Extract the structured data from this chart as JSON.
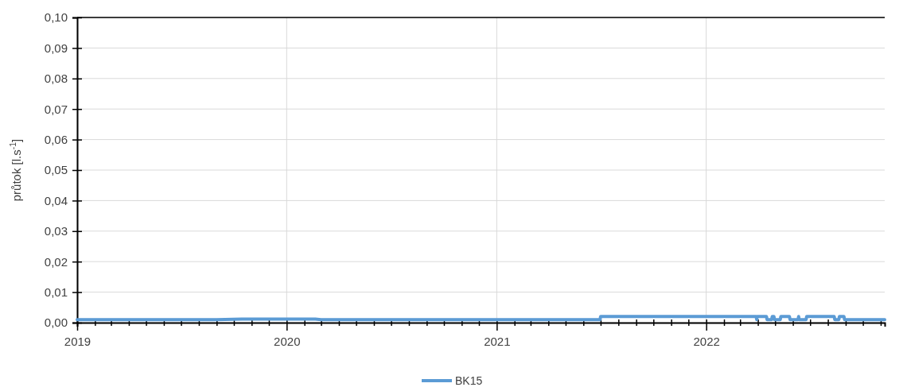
{
  "chart_data": {
    "type": "line",
    "ylabel": "průtok [l.s$^{-1}$]",
    "x": [
      "2019-01-01",
      "2019-03-01",
      "2019-05-01",
      "2019-07-01",
      "2019-09-01",
      "2019-10-15",
      "2019-12-01",
      "2020-02-20",
      "2020-03-01",
      "2020-06-01",
      "2021-01-01",
      "2021-06-30",
      "2021-07-01",
      "2022-03-29",
      "2022-03-30",
      "2022-03-31",
      "2022-04-16",
      "2022-04-17",
      "2022-04-25",
      "2022-04-26",
      "2022-04-29",
      "2022-04-30",
      "2022-05-10",
      "2022-05-11",
      "2022-05-26",
      "2022-05-27",
      "2022-05-31",
      "2022-06-01",
      "2022-06-10",
      "2022-06-11",
      "2022-06-12",
      "2022-06-24",
      "2022-06-25",
      "2022-08-12",
      "2022-08-13",
      "2022-08-20",
      "2022-08-21",
      "2022-08-29",
      "2022-08-30",
      "2022-11-08"
    ],
    "series": [
      {
        "name": "BK15",
        "color": "#5b9bd5",
        "values": [
          0.001,
          0.001,
          0.001,
          0.001,
          0.001,
          0.0012,
          0.0012,
          0.0012,
          0.001,
          0.001,
          0.001,
          0.001,
          0.002,
          0.002,
          0.001,
          0.002,
          0.002,
          0.001,
          0.001,
          0.002,
          0.002,
          0.001,
          0.001,
          0.002,
          0.002,
          0.001,
          0.001,
          0.001,
          0.001,
          0.002,
          0.001,
          0.001,
          0.002,
          0.002,
          0.001,
          0.001,
          0.002,
          0.002,
          0.001,
          0.001
        ]
      }
    ],
    "xlim": [
      "2019-01-01",
      "2022-11-08"
    ],
    "xticks": [
      {
        "value": "2019-01-01",
        "label": "2019"
      },
      {
        "value": "2019-02-01",
        "label": null
      },
      {
        "value": "2019-03-01",
        "label": null
      },
      {
        "value": "2019-04-01",
        "label": null
      },
      {
        "value": "2019-05-01",
        "label": null
      },
      {
        "value": "2019-06-01",
        "label": null
      },
      {
        "value": "2019-07-01",
        "label": null
      },
      {
        "value": "2019-08-01",
        "label": null
      },
      {
        "value": "2019-09-01",
        "label": null
      },
      {
        "value": "2019-10-01",
        "label": null
      },
      {
        "value": "2019-11-01",
        "label": null
      },
      {
        "value": "2019-12-01",
        "label": null
      },
      {
        "value": "2020-01-01",
        "label": "2020"
      },
      {
        "value": "2020-02-01",
        "label": null
      },
      {
        "value": "2020-03-01",
        "label": null
      },
      {
        "value": "2020-04-01",
        "label": null
      },
      {
        "value": "2020-05-01",
        "label": null
      },
      {
        "value": "2020-06-01",
        "label": null
      },
      {
        "value": "2020-07-01",
        "label": null
      },
      {
        "value": "2020-08-01",
        "label": null
      },
      {
        "value": "2020-09-01",
        "label": null
      },
      {
        "value": "2020-10-01",
        "label": null
      },
      {
        "value": "2020-11-01",
        "label": null
      },
      {
        "value": "2020-12-01",
        "label": null
      },
      {
        "value": "2021-01-01",
        "label": "2021"
      },
      {
        "value": "2021-02-01",
        "label": null
      },
      {
        "value": "2021-03-01",
        "label": null
      },
      {
        "value": "2021-04-01",
        "label": null
      },
      {
        "value": "2021-05-01",
        "label": null
      },
      {
        "value": "2021-06-01",
        "label": null
      },
      {
        "value": "2021-07-01",
        "label": null
      },
      {
        "value": "2021-08-01",
        "label": null
      },
      {
        "value": "2021-09-01",
        "label": null
      },
      {
        "value": "2021-10-01",
        "label": null
      },
      {
        "value": "2021-11-01",
        "label": null
      },
      {
        "value": "2021-12-01",
        "label": null
      },
      {
        "value": "2022-01-01",
        "label": "2022"
      },
      {
        "value": "2022-02-01",
        "label": null
      },
      {
        "value": "2022-03-01",
        "label": null
      },
      {
        "value": "2022-04-01",
        "label": null
      },
      {
        "value": "2022-05-01",
        "label": null
      },
      {
        "value": "2022-06-01",
        "label": null
      },
      {
        "value": "2022-07-01",
        "label": null
      },
      {
        "value": "2022-08-01",
        "label": null
      },
      {
        "value": "2022-09-01",
        "label": null
      },
      {
        "value": "2022-10-01",
        "label": null
      },
      {
        "value": "2022-11-01",
        "label": null
      }
    ],
    "ylim": [
      0,
      0.1
    ],
    "yticks": [
      {
        "value": 0,
        "label": "0,00"
      },
      {
        "value": 0.01,
        "label": "0,01"
      },
      {
        "value": 0.02,
        "label": "0,02"
      },
      {
        "value": 0.03,
        "label": "0,03"
      },
      {
        "value": 0.04,
        "label": "0,04"
      },
      {
        "value": 0.05,
        "label": "0,05"
      },
      {
        "value": 0.06,
        "label": "0,06"
      },
      {
        "value": 0.07,
        "label": "0,07"
      },
      {
        "value": 0.08,
        "label": "0,08"
      },
      {
        "value": 0.09,
        "label": "0,09"
      },
      {
        "value": 0.1,
        "label": "0,10"
      }
    ],
    "grid": true,
    "legend": "bottom",
    "marker": "none",
    "line_style": "solid"
  }
}
